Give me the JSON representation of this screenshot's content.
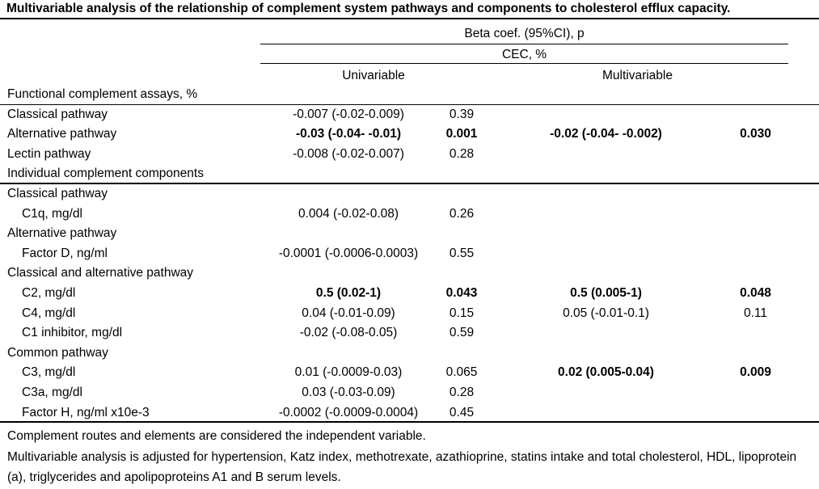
{
  "title": "Multivariable analysis of the relationship of complement system pathways and components to cholesterol efflux capacity.",
  "header": {
    "span_top": "Beta coef. (95%CI), p",
    "span_mid": "CEC, %",
    "col_univariable": "Univariable",
    "col_multivariable": "Multivariable"
  },
  "table": {
    "rows": [
      {
        "label": "Functional complement assays, %",
        "indent": false,
        "rule_after": "thin",
        "uni_beta": "",
        "uni_p": "",
        "multi_beta": "",
        "multi_p": "",
        "uni_bold": false,
        "multi_bold": false
      },
      {
        "label": "Classical pathway",
        "indent": false,
        "rule_after": "",
        "uni_beta": "-0.007 (-0.02-0.009)",
        "uni_p": "0.39",
        "multi_beta": "",
        "multi_p": "",
        "uni_bold": false,
        "multi_bold": false
      },
      {
        "label": "Alternative pathway",
        "indent": false,
        "rule_after": "",
        "uni_beta": "-0.03 (-0.04- -0.01)",
        "uni_p": "0.001",
        "multi_beta": "-0.02 (-0.04- -0.002)",
        "multi_p": "0.030",
        "uni_bold": true,
        "multi_bold": true
      },
      {
        "label": "Lectin pathway",
        "indent": false,
        "rule_after": "",
        "uni_beta": "-0.008 (-0.02-0.007)",
        "uni_p": "0.28",
        "multi_beta": "",
        "multi_p": "",
        "uni_bold": false,
        "multi_bold": false
      },
      {
        "label": "Individual complement components",
        "indent": false,
        "rule_after": "thick",
        "uni_beta": "",
        "uni_p": "",
        "multi_beta": "",
        "multi_p": "",
        "uni_bold": false,
        "multi_bold": false
      },
      {
        "label": "Classical pathway",
        "indent": false,
        "rule_after": "",
        "uni_beta": "",
        "uni_p": "",
        "multi_beta": "",
        "multi_p": "",
        "uni_bold": false,
        "multi_bold": false
      },
      {
        "label": "C1q, mg/dl",
        "indent": true,
        "rule_after": "",
        "uni_beta": "0.004 (-0.02-0.08)",
        "uni_p": "0.26",
        "multi_beta": "",
        "multi_p": "",
        "uni_bold": false,
        "multi_bold": false
      },
      {
        "label": "Alternative pathway",
        "indent": false,
        "rule_after": "",
        "uni_beta": "",
        "uni_p": "",
        "multi_beta": "",
        "multi_p": "",
        "uni_bold": false,
        "multi_bold": false
      },
      {
        "label": "Factor D, ng/ml",
        "indent": true,
        "rule_after": "",
        "uni_beta": "-0.0001 (-0.0006-0.0003)",
        "uni_p": "0.55",
        "multi_beta": "",
        "multi_p": "",
        "uni_bold": false,
        "multi_bold": false
      },
      {
        "label": "Classical and alternative pathway",
        "indent": false,
        "rule_after": "",
        "uni_beta": "",
        "uni_p": "",
        "multi_beta": "",
        "multi_p": "",
        "uni_bold": false,
        "multi_bold": false
      },
      {
        "label": "C2, mg/dl",
        "indent": true,
        "rule_after": "",
        "uni_beta": "0.5 (0.02-1)",
        "uni_p": "0.043",
        "multi_beta": "0.5 (0.005-1)",
        "multi_p": "0.048",
        "uni_bold": true,
        "multi_bold": true
      },
      {
        "label": "C4, mg/dl",
        "indent": true,
        "rule_after": "",
        "uni_beta": "0.04 (-0.01-0.09)",
        "uni_p": "0.15",
        "multi_beta": "0.05 (-0.01-0.1)",
        "multi_p": "0.11",
        "uni_bold": false,
        "multi_bold": false
      },
      {
        "label": "C1 inhibitor, mg/dl",
        "indent": true,
        "rule_after": "",
        "uni_beta": "-0.02 (-0.08-0.05)",
        "uni_p": "0.59",
        "multi_beta": "",
        "multi_p": "",
        "uni_bold": false,
        "multi_bold": false
      },
      {
        "label": "Common pathway",
        "indent": false,
        "rule_after": "",
        "uni_beta": "",
        "uni_p": "",
        "multi_beta": "",
        "multi_p": "",
        "uni_bold": false,
        "multi_bold": false
      },
      {
        "label": "C3, mg/dl",
        "indent": true,
        "rule_after": "",
        "uni_beta": "0.01 (-0.0009-0.03)",
        "uni_p": "0.065",
        "multi_beta": "0.02 (0.005-0.04)",
        "multi_p": "0.009",
        "uni_bold": false,
        "multi_bold": true
      },
      {
        "label": "C3a, mg/dl",
        "indent": true,
        "rule_after": "",
        "uni_beta": "0.03 (-0.03-0.09)",
        "uni_p": "0.28",
        "multi_beta": "",
        "multi_p": "",
        "uni_bold": false,
        "multi_bold": false
      },
      {
        "label": "Factor H, ng/ml x10e-3",
        "indent": true,
        "rule_after": "thick",
        "uni_beta": "-0.0002 (-0.0009-0.0004)",
        "uni_p": "0.45",
        "multi_beta": "",
        "multi_p": "",
        "uni_bold": false,
        "multi_bold": false
      }
    ]
  },
  "footnotes": [
    "Complement routes and elements are considered the independent variable.",
    "Multivariable analysis is adjusted for hypertension, Katz index, methotrexate, azathioprine, statins intake and total cholesterol, HDL, lipoprotein (a), triglycerides and apolipoproteins A1 and B serum levels."
  ]
}
